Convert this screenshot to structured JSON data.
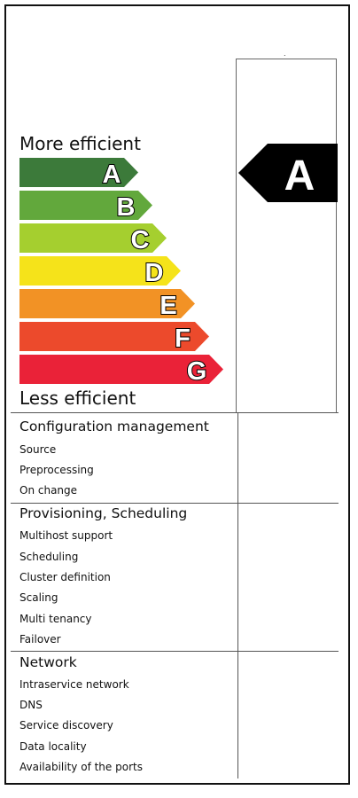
{
  "label": {
    "header_top": "More efficient",
    "header_bottom": "Less efficient",
    "tiny_mark": "."
  },
  "classes": [
    {
      "letter": "A",
      "color": "#3c7a3a"
    },
    {
      "letter": "B",
      "color": "#62a83c"
    },
    {
      "letter": "C",
      "color": "#a5cf2f"
    },
    {
      "letter": "D",
      "color": "#f5e31a"
    },
    {
      "letter": "E",
      "color": "#f29225"
    },
    {
      "letter": "F",
      "color": "#ec4a2c"
    },
    {
      "letter": "G",
      "color": "#ea2238"
    }
  ],
  "selected": {
    "letter": "A",
    "color": "#000000"
  },
  "sections": [
    {
      "title": "Configuration management",
      "items": [
        "Source",
        "Preprocessing",
        "On change"
      ]
    },
    {
      "title": "Provisioning, Scheduling",
      "items": [
        "Multihost support",
        "Scheduling",
        "Cluster definition",
        "Scaling",
        "Multi tenancy",
        "Failover"
      ]
    },
    {
      "title": "Network",
      "items": [
        "Intraservice network",
        "DNS",
        "Service discovery",
        "Data locality",
        "Availability of the ports"
      ]
    }
  ]
}
